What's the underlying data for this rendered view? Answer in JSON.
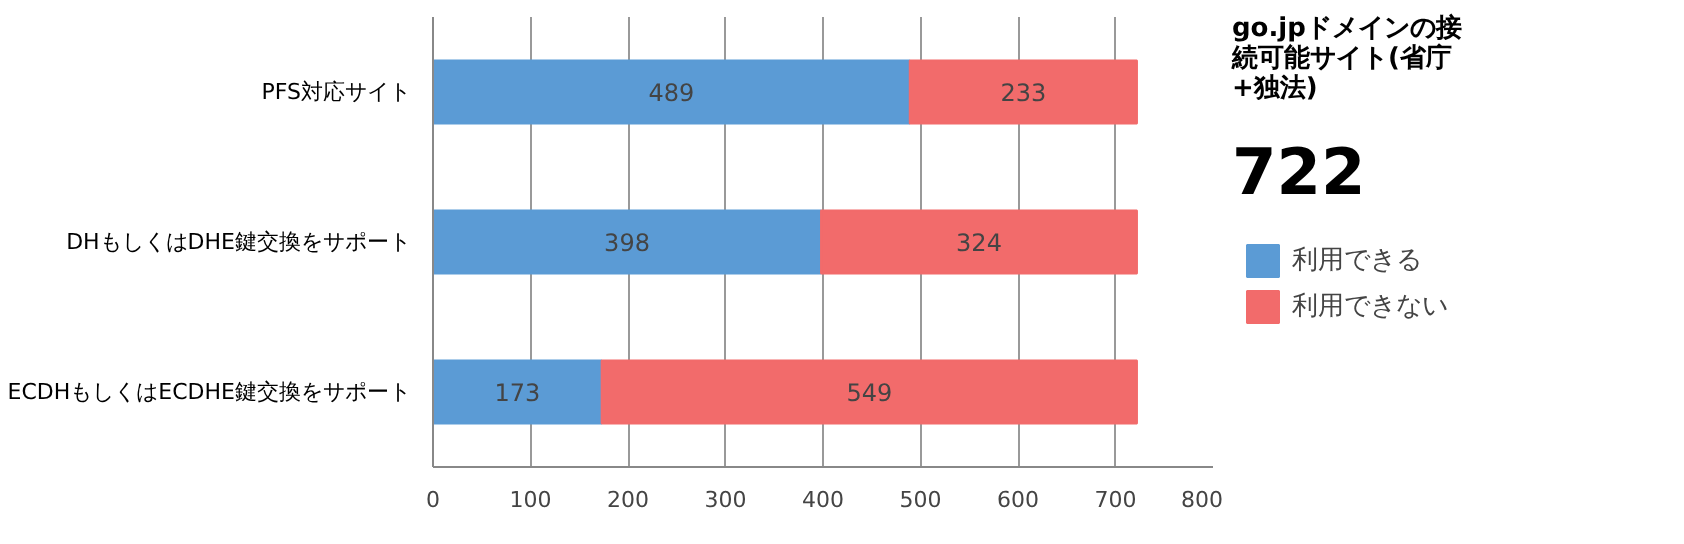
{
  "chart_data": {
    "type": "bar",
    "orientation": "horizontal",
    "stacked": true,
    "categories": [
      "PFS対応サイト",
      "DHもしくはDHE鍵交換をサポート",
      "ECDHもしくはECDHE鍵交換をサポート"
    ],
    "series": [
      {
        "name": "利用できる",
        "color": "#5b9bd5",
        "values": [
          489,
          398,
          173
        ]
      },
      {
        "name": "利用できない",
        "color": "#f26b6b",
        "values": [
          233,
          324,
          549
        ]
      }
    ],
    "xlim": [
      0,
      800
    ],
    "xticks": [
      0,
      100,
      200,
      300,
      400,
      500,
      600,
      700,
      800
    ],
    "grid": "x",
    "legend": "right",
    "data_labels": true,
    "annotations": [
      "go.jpドメインの接続可能サイト(省庁+独法)",
      "722"
    ]
  }
}
